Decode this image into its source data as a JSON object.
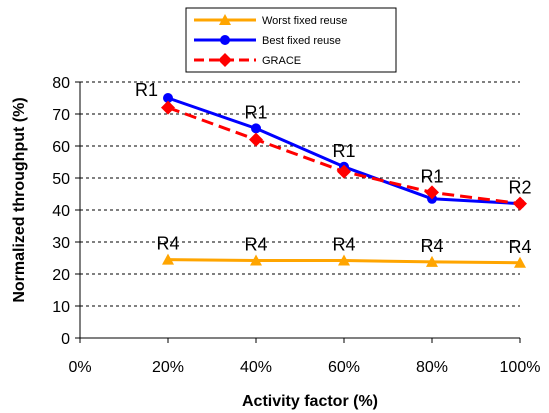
{
  "chart_data": {
    "type": "line",
    "x": [
      20,
      40,
      60,
      80,
      100
    ],
    "x_tick_labels": [
      "0%",
      "20%",
      "40%",
      "60%",
      "80%",
      "100%"
    ],
    "y_tick_labels": [
      "0",
      "10",
      "20",
      "30",
      "40",
      "50",
      "60",
      "70",
      "80"
    ],
    "xlabel": "Activity factor (%)",
    "ylabel": "Normalized throughput (%)",
    "xlim": [
      0,
      100
    ],
    "ylim": [
      0,
      80
    ],
    "grid": "horizontal dashed",
    "legend_position": "top",
    "series": [
      {
        "name": "Worst fixed reuse",
        "color": "#FFA500",
        "marker": "triangle",
        "line": "solid",
        "values": [
          24.5,
          24.2,
          24.2,
          23.8,
          23.5
        ]
      },
      {
        "name": "Best fixed reuse",
        "color": "#0000FF",
        "marker": "circle",
        "line": "solid",
        "values": [
          75,
          65.5,
          53.5,
          43.5,
          42
        ]
      },
      {
        "name": "GRACE",
        "color": "#FF0000",
        "marker": "diamond",
        "line": "dashed",
        "values": [
          72,
          62,
          52,
          45.5,
          42
        ]
      }
    ],
    "annotations": [
      {
        "text": "R1",
        "x": 20,
        "y": 75,
        "pos": "left"
      },
      {
        "text": "R1",
        "x": 40,
        "y": 65.5,
        "pos": "above"
      },
      {
        "text": "R1",
        "x": 60,
        "y": 53.5,
        "pos": "above"
      },
      {
        "text": "R1",
        "x": 80,
        "y": 45.5,
        "pos": "above"
      },
      {
        "text": "R2",
        "x": 100,
        "y": 42,
        "pos": "above"
      },
      {
        "text": "R4",
        "x": 20,
        "y": 24.5,
        "pos": "above"
      },
      {
        "text": "R4",
        "x": 40,
        "y": 24.2,
        "pos": "above"
      },
      {
        "text": "R4",
        "x": 60,
        "y": 24.2,
        "pos": "above"
      },
      {
        "text": "R4",
        "x": 80,
        "y": 23.8,
        "pos": "above"
      },
      {
        "text": "R4",
        "x": 100,
        "y": 23.5,
        "pos": "above"
      }
    ]
  }
}
